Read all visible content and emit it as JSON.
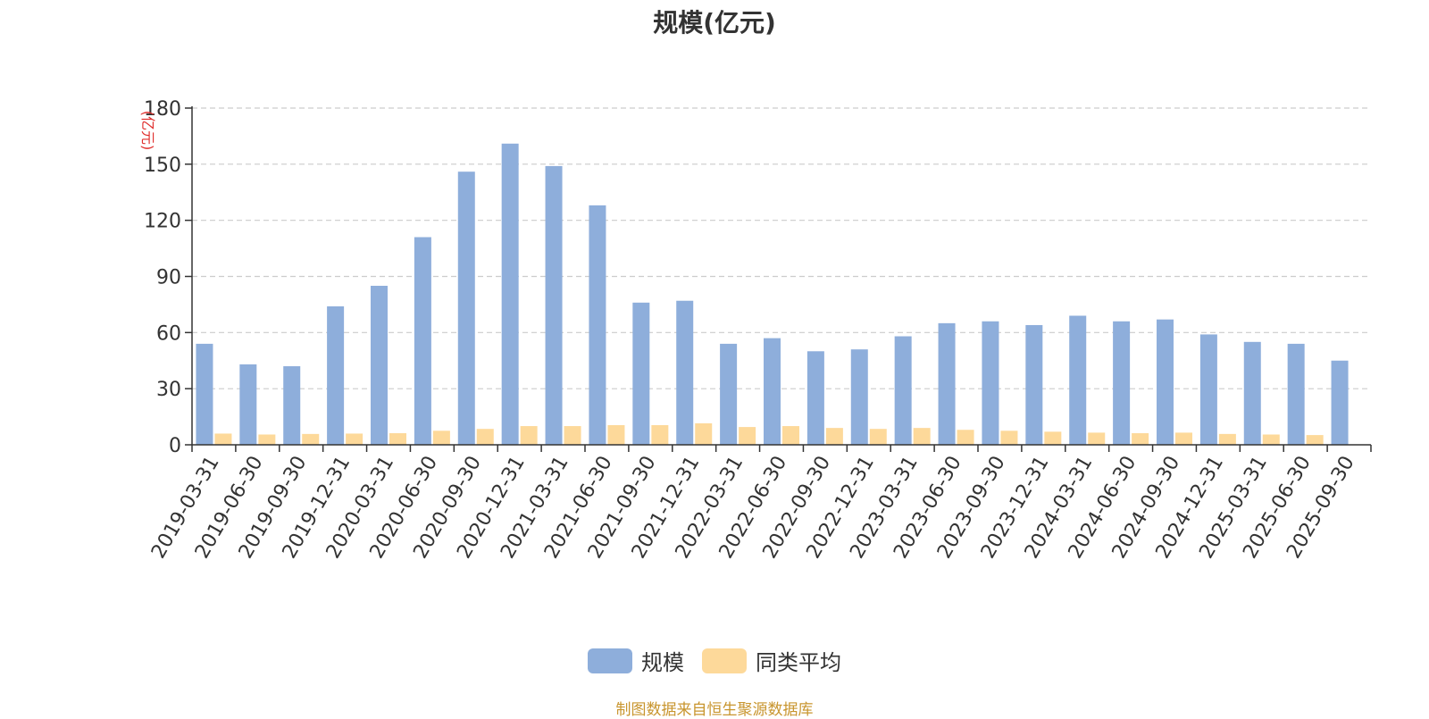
{
  "chart_data": {
    "type": "bar",
    "title": "规模(亿元)",
    "ylabel": "(亿元)",
    "ylim": [
      0,
      180
    ],
    "yticks": [
      "0",
      "30",
      "60",
      "90",
      "120",
      "150",
      "180"
    ],
    "grid": true,
    "legend_position": "bottom-center",
    "categories": [
      "2019-03-31",
      "2019-06-30",
      "2019-09-30",
      "2019-12-31",
      "2020-03-31",
      "2020-06-30",
      "2020-09-30",
      "2020-12-31",
      "2021-03-31",
      "2021-06-30",
      "2021-09-30",
      "2021-12-31",
      "2022-03-31",
      "2022-06-30",
      "2022-09-30",
      "2022-12-31",
      "2023-03-31",
      "2023-06-30",
      "2023-09-30",
      "2023-12-31",
      "2024-03-31",
      "2024-06-30",
      "2024-09-30",
      "2024-12-31",
      "2025-03-31",
      "2025-06-30",
      "2025-09-30"
    ],
    "series": [
      {
        "name": "规模",
        "color": "#8eaedb",
        "values": [
          54,
          43,
          42,
          74,
          85,
          111,
          146,
          161,
          149,
          128,
          76,
          77,
          54,
          57,
          50,
          51,
          58,
          65,
          66,
          64,
          69,
          66,
          67,
          59,
          55,
          54,
          45
        ]
      },
      {
        "name": "同类平均",
        "color": "#fdd99a",
        "values": [
          6,
          5.5,
          5.8,
          6,
          6.2,
          7.5,
          8.5,
          10,
          10,
          10.5,
          10.5,
          11.5,
          9.5,
          10,
          9,
          8.5,
          9,
          8,
          7.5,
          7,
          6.5,
          6.2,
          6.5,
          5.8,
          5.5,
          5.2,
          null
        ]
      }
    ]
  },
  "source_note": "制图数据来自恒生聚源数据库",
  "colors": {
    "axis": "#333333",
    "grid": "#cccccc",
    "ylabel": "#e0302e",
    "text": "#333333"
  }
}
